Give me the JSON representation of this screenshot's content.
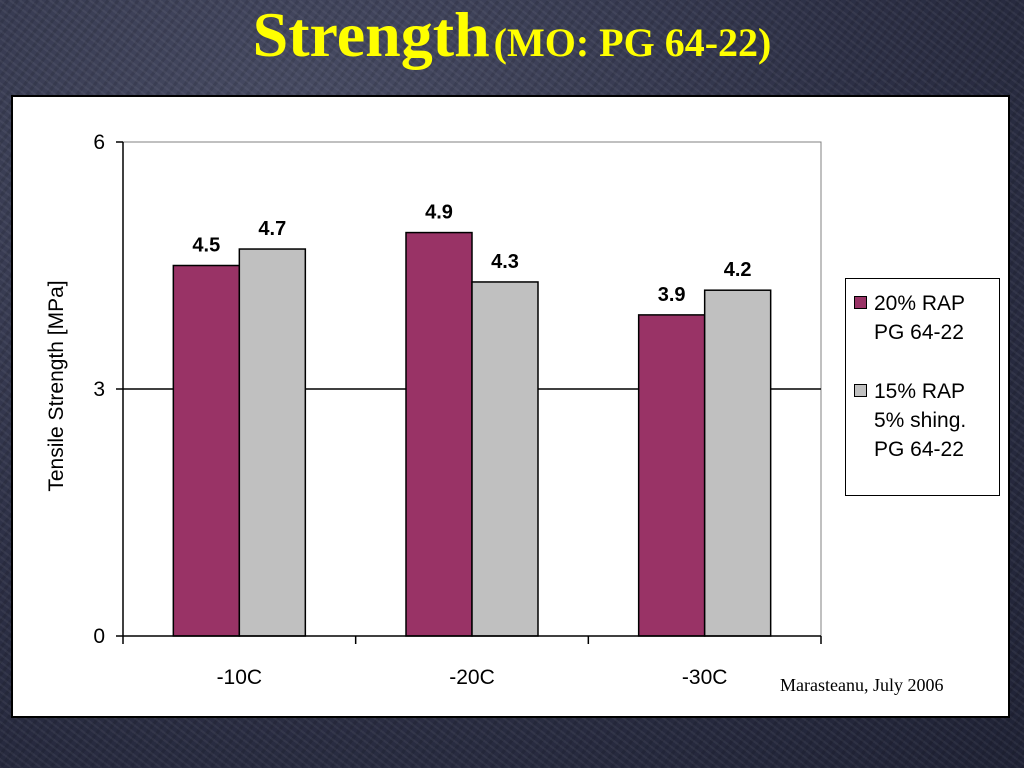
{
  "slide": {
    "title_main": "Strength",
    "title_sub": "(MO: PG 64-22)",
    "source_note": "Marasteanu, July 2006",
    "title_color": "#ffff00"
  },
  "chart_data": {
    "type": "bar",
    "title": "",
    "xlabel": "",
    "ylabel": "Tensile Strength [MPa]",
    "categories": [
      "-10C",
      "-20C",
      "-30C"
    ],
    "ylim": [
      0,
      6
    ],
    "yticks": [
      0,
      3,
      6
    ],
    "grid": true,
    "legend_position": "right",
    "series": [
      {
        "name": "20% RAP\nPG 64-22",
        "values": [
          4.5,
          4.9,
          3.9
        ],
        "labels": [
          "4.5",
          "4.9",
          "3.9"
        ],
        "color": "#993366"
      },
      {
        "name": "15% RAP\n5% shing.\nPG 64-22",
        "values": [
          4.7,
          4.3,
          4.2
        ],
        "labels": [
          "4.7",
          "4.3",
          "4.2"
        ],
        "color": "#c0c0c0"
      }
    ]
  }
}
